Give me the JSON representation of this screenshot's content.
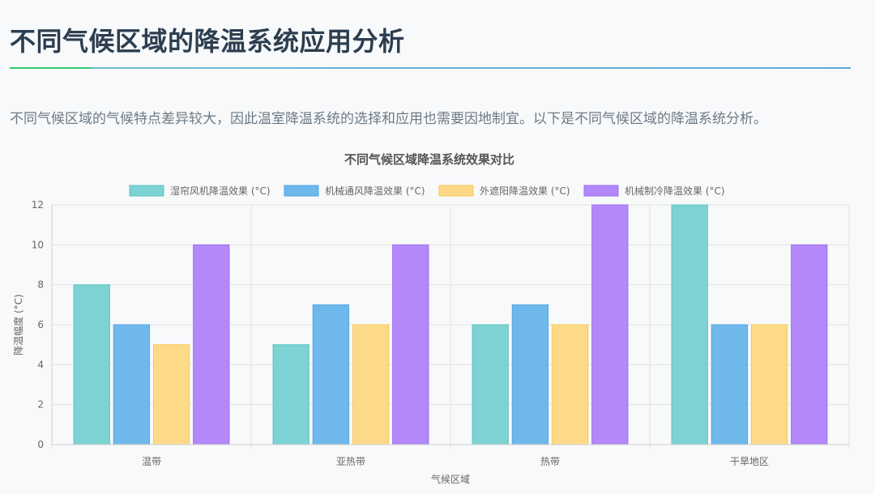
{
  "page": {
    "title": "不同气候区域的降温系统应用分析",
    "intro": "不同气候区域的气候特点差异较大，因此温室降温系统的选择和应用也需要因地制宜。以下是不同气候区域的降温系统分析。"
  },
  "colors": {
    "series": [
      "#7dd3d3",
      "#6fb8ec",
      "#fdd988",
      "#b388f8"
    ],
    "series_border": [
      "#5cc3c3",
      "#52a6e4",
      "#f7c95d",
      "#9e6bf3"
    ]
  },
  "chart_data": {
    "type": "bar",
    "title": "不同气候区域降温系统效果对比",
    "xlabel": "气候区域",
    "ylabel": "降温幅度 (°C)",
    "categories": [
      "温带",
      "亚热带",
      "热带",
      "干旱地区"
    ],
    "ylim": [
      0,
      12
    ],
    "yticks": [
      0,
      2,
      4,
      6,
      8,
      10,
      12
    ],
    "grid": true,
    "legend_position": "top",
    "series": [
      {
        "name": "湿帘风机降温效果 (°C)",
        "values": [
          8,
          5,
          6,
          12
        ]
      },
      {
        "name": "机械通风降温效果 (°C)",
        "values": [
          6,
          7,
          7,
          6
        ]
      },
      {
        "name": "外遮阳降温效果 (°C)",
        "values": [
          5,
          6,
          6,
          6
        ]
      },
      {
        "name": "机械制冷降温效果 (°C)",
        "values": [
          10,
          10,
          12,
          10
        ]
      }
    ]
  }
}
